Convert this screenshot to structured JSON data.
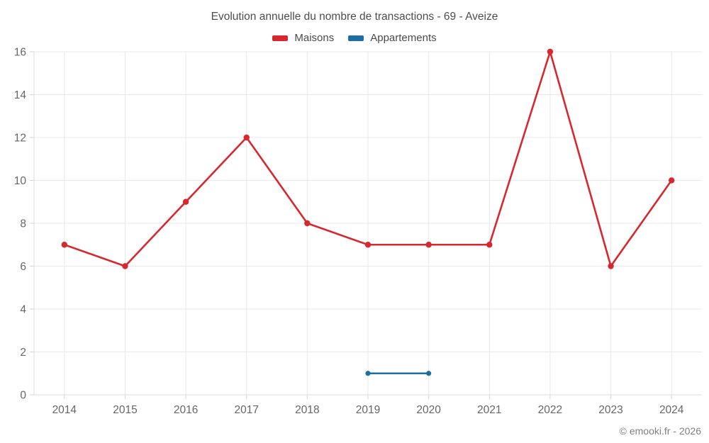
{
  "title": "Evolution annuelle du nombre de transactions - 69 - Aveize",
  "footer": "© emooki.fr - 2026",
  "colors": {
    "maisons": "#d7282f",
    "appartements": "#1c6ea4",
    "grid": "#e8e8e8",
    "axis": "#dcdcdc",
    "tick": "#d4d4d4",
    "tick_text": "#666666"
  },
  "chart_data": {
    "type": "line",
    "title": "Evolution annuelle du nombre de transactions - 69 - Aveize",
    "categories": [
      "2014",
      "2015",
      "2016",
      "2017",
      "2018",
      "2019",
      "2020",
      "2021",
      "2022",
      "2023",
      "2024"
    ],
    "series": [
      {
        "name": "Maisons",
        "color": "#d7282f",
        "values": [
          7,
          6,
          9,
          12,
          8,
          7,
          7,
          7,
          16,
          6,
          10
        ]
      },
      {
        "name": "Appartements",
        "color": "#1c6ea4",
        "values": [
          null,
          null,
          null,
          null,
          null,
          1,
          1,
          null,
          null,
          null,
          null
        ]
      }
    ],
    "xlabel": "",
    "ylabel": "",
    "ylim": [
      0,
      16
    ],
    "ytick_step": 2,
    "grid": true,
    "legend_position": "top"
  }
}
